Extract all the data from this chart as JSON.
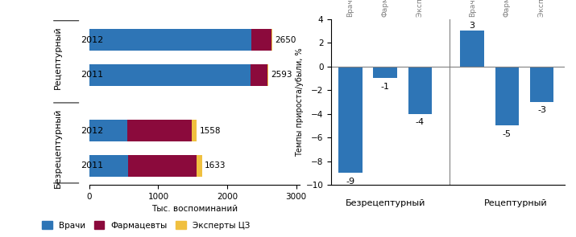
{
  "vrachi_vals": [
    2350,
    2340,
    550,
    560
  ],
  "farm_vals": [
    290,
    245,
    940,
    1000
  ],
  "eksp_vals": [
    10,
    8,
    68,
    73
  ],
  "totals": [
    2650,
    2593,
    1558,
    1633
  ],
  "year_labels": [
    "2012",
    "2011",
    "2012",
    "2011"
  ],
  "color_vrachi": "#2E75B6",
  "color_farm": "#8B0A3C",
  "color_eksp": "#F0C040",
  "xlim_left": [
    0,
    3000
  ],
  "xlabel_left": "Тыс. воспоминаний",
  "group_label_rec": "Рецептурный",
  "group_label_bez": "Безрецептурный",
  "values_bez": [
    -9,
    -1,
    -4
  ],
  "values_rec": [
    3,
    -5,
    -3
  ],
  "right_ylabel": "Темпы прироста/убыли, %",
  "right_ylim": [
    -10,
    4
  ],
  "right_yticks": [
    -10,
    -8,
    -6,
    -4,
    -2,
    0,
    2,
    4
  ],
  "cat_labels_bez": [
    "Врачи",
    "Фармацевты",
    "Эксперты ЦЗ"
  ],
  "cat_labels_rec": [
    "Врачи",
    "Фармацевты",
    "Эксперты ЦЗ"
  ],
  "right_xlabel_bez": "Безрецептурный",
  "right_xlabel_rec": "Рецептурный",
  "legend_labels": [
    "Врачи",
    "Фармацевты",
    "Эксперты ЦЗ"
  ],
  "legend_colors": [
    "#2E75B6",
    "#8B0A3C",
    "#F0C040"
  ]
}
